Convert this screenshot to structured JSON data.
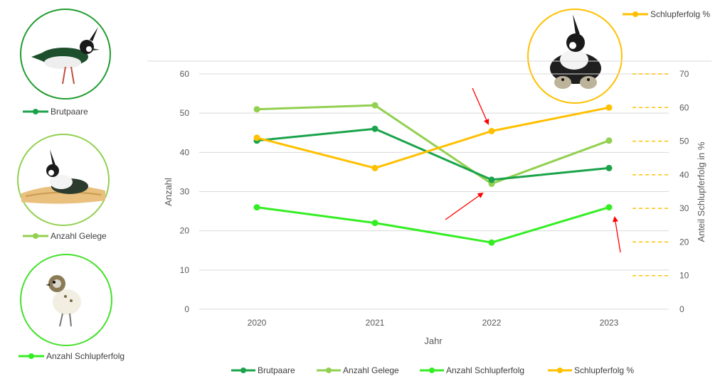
{
  "chart_data": {
    "type": "line",
    "xlabel": "Jahr",
    "ylabel": "Anzahl",
    "y2label": "Anteil Schlupferfolg in %",
    "categories": [
      "2020",
      "2021",
      "2022",
      "2023"
    ],
    "ylim": [
      0,
      60
    ],
    "y_ticks": [
      "0",
      "10",
      "20",
      "30",
      "40",
      "50",
      "60"
    ],
    "y2lim": [
      0,
      70
    ],
    "y2_ticks": [
      "0",
      "10",
      "20",
      "30",
      "40",
      "50",
      "60",
      "70"
    ],
    "grid": true,
    "legend_position": "bottom",
    "series": [
      {
        "name": "Brutpaare",
        "axis": "left",
        "color": "#1aa34a",
        "values": [
          43,
          46,
          33,
          36
        ]
      },
      {
        "name": "Anzahl Gelege",
        "axis": "left",
        "color": "#92d050",
        "values": [
          51,
          52,
          32,
          43
        ]
      },
      {
        "name": "Anzahl Schlupferfolg",
        "axis": "left",
        "color": "#33ee22",
        "values": [
          26,
          22,
          17,
          26
        ]
      },
      {
        "name": "Schlupferfolg %",
        "axis": "right",
        "color": "#ffc000",
        "values": [
          51,
          42,
          53,
          60
        ]
      }
    ]
  },
  "side_legend": {
    "brutpaare": "Brutpaare",
    "gelege": "Anzahl Gelege",
    "schlupf": "Anzahl Schlupferfolg",
    "schlupf_pct": "Schlupferfolg %"
  },
  "colors": {
    "brutpaare": "#1aa34a",
    "gelege": "#92d050",
    "schlupf": "#33ee22",
    "schlupf_pct": "#ffc000",
    "arrow": "#ff0000",
    "grid": "#d9d9d9"
  },
  "icons": [
    "lapwing-adult-icon",
    "lapwing-nest-icon",
    "lapwing-chick-icon",
    "lapwing-family-icon"
  ]
}
